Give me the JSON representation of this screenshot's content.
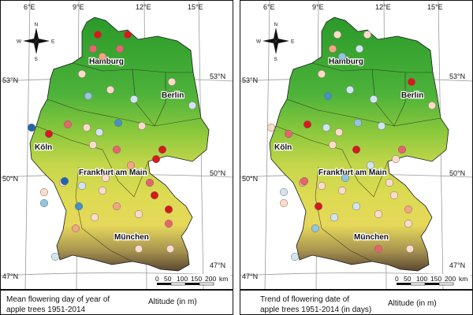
{
  "maps": [
    {
      "id": "mean",
      "lon_labels": [
        "6°E",
        "9°E",
        "12°E",
        "15°E"
      ],
      "lat_labels_left": [
        "53°N",
        "50°N",
        "47°N"
      ],
      "lat_labels_right": [
        "53°N",
        "50°N",
        "47°N"
      ],
      "cities": [
        "Hamburg",
        "Berlin",
        "Köln",
        "Frankfurt am Main",
        "München"
      ],
      "compass": {
        "n": "N",
        "s": "S",
        "e": "E",
        "w": "W"
      },
      "scale": {
        "ticks": [
          "0",
          "50",
          "100",
          "150",
          "200"
        ],
        "unit": "km"
      },
      "legend": {
        "title_line1": "Mean flowering day of year of",
        "title_line2": "apple trees 1951-2014",
        "altitude_label": "Altitude (in m)"
      },
      "point_colors": [
        "#d7191c",
        "#d7191c",
        "#e8636a",
        "#e8636a",
        "#f4a582",
        "#fddbc7",
        "#fddbc7",
        "#fddbc7",
        "#d1e5f0",
        "#d1e5f0",
        "#92c5de",
        "#2166ac",
        "#d7191c",
        "#e8636a",
        "#fddbc7",
        "#d1e5f0",
        "#4393c3",
        "#fddbc7",
        "#fddbc7",
        "#e8636a",
        "#d7191c",
        "#d7191c",
        "#f4a582",
        "#fddbc7",
        "#d1e5f0",
        "#fddbc7",
        "#fddbc7",
        "#92c5de",
        "#4393c3",
        "#2166ac",
        "#fddbc7",
        "#f4a582",
        "#e8636a",
        "#d7191c",
        "#d7191c",
        "#fddbc7",
        "#fddbc7",
        "#f4a582",
        "#e8636a",
        "#fddbc7",
        "#d1e5f0",
        "#fddbc7"
      ]
    },
    {
      "id": "trend",
      "lon_labels": [
        "6°E",
        "9°E",
        "12°E",
        "15°E"
      ],
      "lat_labels_left": [
        "53°N",
        "50°N",
        "47°N"
      ],
      "lat_labels_right": [
        "53°N",
        "50°N",
        "47°N"
      ],
      "cities": [
        "Hamburg",
        "Berlin",
        "Köln",
        "Frankfurt am Main",
        "München"
      ],
      "compass": {
        "n": "N",
        "s": "S",
        "e": "E",
        "w": "W"
      },
      "scale": {
        "ticks": [
          "0",
          "50",
          "100",
          "150",
          "200"
        ],
        "unit": "km"
      },
      "legend": {
        "title_line1": "Trend of flowering date of",
        "title_line2": "apple trees 1951-2014 (in days)",
        "altitude_label": "Altitude (in m)"
      },
      "point_colors": [
        "#fddbc7",
        "#fddbc7",
        "#f4a582",
        "#d1e5f0",
        "#92c5de",
        "#fddbc7",
        "#d7191c",
        "#d1e5f0",
        "#fddbc7",
        "#d1e5f0",
        "#4393c3",
        "#fddbc7",
        "#e8636a",
        "#d7191c",
        "#d1e5f0",
        "#fddbc7",
        "#92c5de",
        "#d1e5f0",
        "#fddbc7",
        "#d7191c",
        "#e8636a",
        "#fddbc7",
        "#d1e5f0",
        "#92c5de",
        "#fddbc7",
        "#f4a582",
        "#d1e5f0",
        "#fddbc7",
        "#d7191c",
        "#e8636a",
        "#fddbc7",
        "#d1e5f0",
        "#fddbc7",
        "#fddbc7",
        "#f4a582",
        "#fddbc7",
        "#d1e5f0",
        "#92c5de",
        "#fddbc7",
        "#e8636a",
        "#d1e5f0",
        "#fddbc7"
      ]
    }
  ]
}
